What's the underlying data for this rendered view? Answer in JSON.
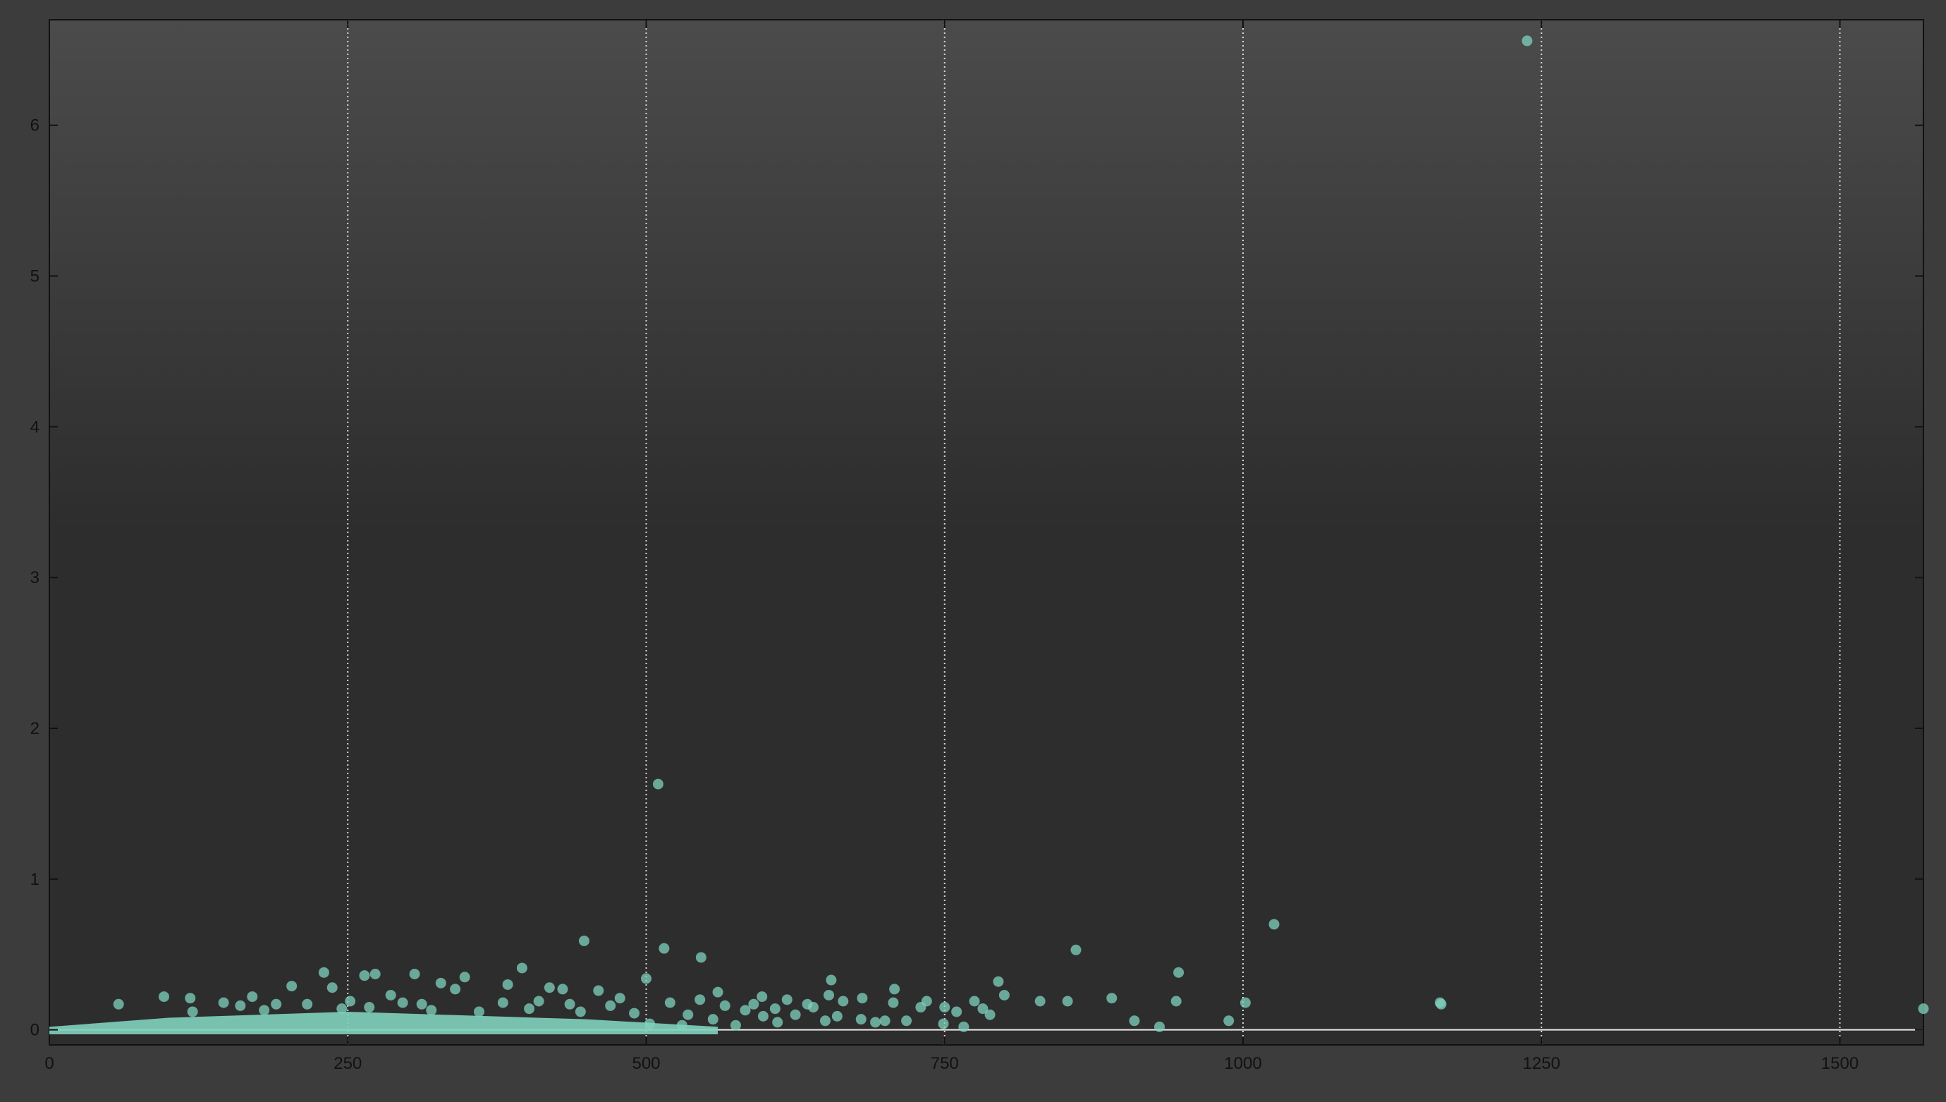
{
  "chart_data": {
    "type": "scatter",
    "title": "",
    "xlabel": "",
    "ylabel": "",
    "xlim": [
      0,
      1570
    ],
    "ylim": [
      -0.1,
      6.7
    ],
    "x_ticks": [
      0,
      250,
      500,
      750,
      1000,
      1250,
      1500
    ],
    "y_ticks": [
      0,
      1,
      2,
      3,
      4,
      5,
      6
    ],
    "grid": "vertical dotted lines",
    "legend": "none",
    "colors": {
      "point": "#7fd1bd",
      "plot_bg_top": "#4b4b4b",
      "plot_bg_bottom": "#2d2d2d",
      "frame_bg": "#3c3c3c",
      "grid": "#d8d8d8",
      "axis_text": "#111111",
      "zero_line": "#e8e8e8"
    },
    "series": [
      {
        "points": [
          [
            1238,
            6.56
          ],
          [
            510,
            1.63
          ],
          [
            1026,
            0.7
          ],
          [
            448,
            0.59
          ],
          [
            860,
            0.53
          ],
          [
            515,
            0.54
          ],
          [
            546,
            0.48
          ],
          [
            396,
            0.41
          ],
          [
            946,
            0.38
          ],
          [
            230,
            0.38
          ],
          [
            306,
            0.37
          ],
          [
            273,
            0.37
          ],
          [
            264,
            0.36
          ],
          [
            348,
            0.35
          ],
          [
            500,
            0.34
          ],
          [
            795,
            0.32
          ],
          [
            655,
            0.33
          ],
          [
            328,
            0.31
          ],
          [
            384,
            0.3
          ],
          [
            203,
            0.29
          ],
          [
            237,
            0.28
          ],
          [
            419,
            0.28
          ],
          [
            340,
            0.27
          ],
          [
            430,
            0.27
          ],
          [
            708,
            0.27
          ],
          [
            460,
            0.26
          ],
          [
            560,
            0.25
          ],
          [
            800,
            0.23
          ],
          [
            653,
            0.23
          ],
          [
            890,
            0.21
          ],
          [
            478,
            0.21
          ],
          [
            96,
            0.22
          ],
          [
            545,
            0.2
          ],
          [
            118,
            0.21
          ],
          [
            170,
            0.22
          ],
          [
            286,
            0.23
          ],
          [
            597,
            0.22
          ],
          [
            618,
            0.2
          ],
          [
            681,
            0.21
          ],
          [
            707,
            0.18
          ],
          [
            735,
            0.19
          ],
          [
            775,
            0.19
          ],
          [
            830,
            0.19
          ],
          [
            853,
            0.19
          ],
          [
            944,
            0.19
          ],
          [
            1002,
            0.18
          ],
          [
            1165,
            0.18
          ],
          [
            1166,
            0.17
          ],
          [
            1570,
            0.14
          ],
          [
            730,
            0.15
          ],
          [
            750,
            0.15
          ],
          [
            640,
            0.15
          ],
          [
            608,
            0.14
          ],
          [
            583,
            0.13
          ],
          [
            625,
            0.1
          ],
          [
            660,
            0.09
          ],
          [
            909,
            0.06
          ],
          [
            988,
            0.06
          ],
          [
            930,
            0.02
          ],
          [
            766,
            0.02
          ],
          [
            749,
            0.04
          ],
          [
            692,
            0.05
          ],
          [
            575,
            0.03
          ],
          [
            610,
            0.05
          ],
          [
            530,
            0.03
          ],
          [
            503,
            0.04
          ],
          [
            58,
            0.17
          ],
          [
            146,
            0.18
          ],
          [
            160,
            0.16
          ],
          [
            190,
            0.17
          ],
          [
            216,
            0.17
          ],
          [
            252,
            0.19
          ],
          [
            296,
            0.18
          ],
          [
            312,
            0.17
          ],
          [
            380,
            0.18
          ],
          [
            410,
            0.19
          ],
          [
            436,
            0.17
          ],
          [
            470,
            0.16
          ],
          [
            520,
            0.18
          ],
          [
            566,
            0.16
          ],
          [
            590,
            0.17
          ],
          [
            635,
            0.17
          ],
          [
            665,
            0.19
          ],
          [
            700,
            0.06
          ],
          [
            718,
            0.06
          ],
          [
            760,
            0.12
          ],
          [
            782,
            0.14
          ],
          [
            788,
            0.1
          ],
          [
            120,
            0.12
          ],
          [
            180,
            0.13
          ],
          [
            245,
            0.14
          ],
          [
            268,
            0.15
          ],
          [
            320,
            0.13
          ],
          [
            360,
            0.12
          ],
          [
            402,
            0.14
          ],
          [
            445,
            0.12
          ],
          [
            490,
            0.11
          ],
          [
            535,
            0.1
          ],
          [
            556,
            0.07
          ],
          [
            598,
            0.09
          ],
          [
            650,
            0.06
          ],
          [
            680,
            0.07
          ]
        ]
      }
    ]
  }
}
